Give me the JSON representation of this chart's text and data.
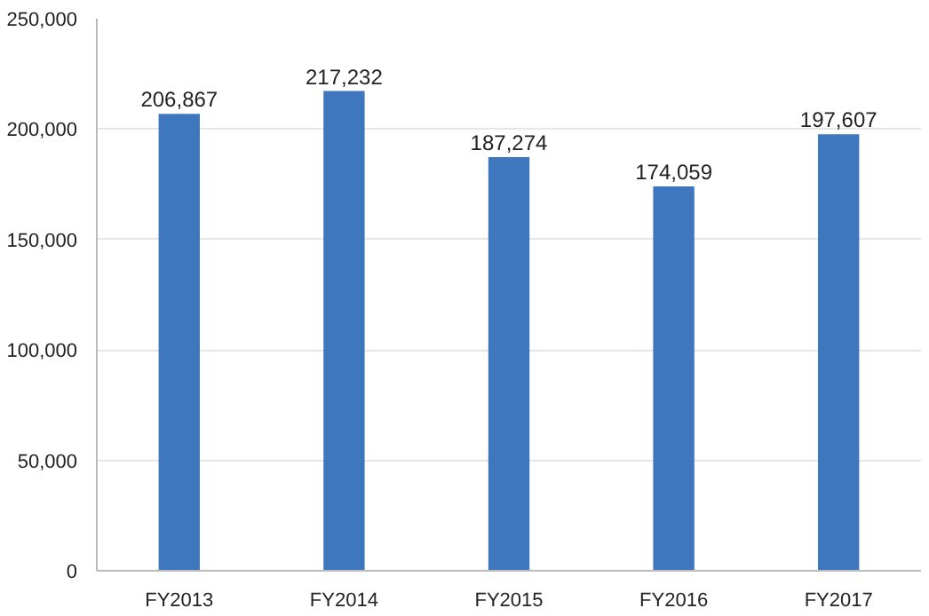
{
  "chart_data": {
    "type": "bar",
    "categories": [
      "FY2013",
      "FY2014",
      "FY2015",
      "FY2016",
      "FY2017"
    ],
    "values": [
      206867,
      217232,
      187274,
      174059,
      197607
    ],
    "color": "#3f77bf",
    "ylim": [
      0,
      250000
    ],
    "yticks": [
      {
        "value": 0,
        "label": "0"
      },
      {
        "value": 50000,
        "label": "50,000"
      },
      {
        "value": 100000,
        "label": "100,000"
      },
      {
        "value": 150000,
        "label": "150,000"
      },
      {
        "value": 200000,
        "label": "200,000"
      },
      {
        "value": 250000,
        "label": "250,000"
      }
    ],
    "grid": "y",
    "value_labels": [
      "206,867",
      "217,232",
      "187,274",
      "174,059",
      "197,607"
    ]
  }
}
